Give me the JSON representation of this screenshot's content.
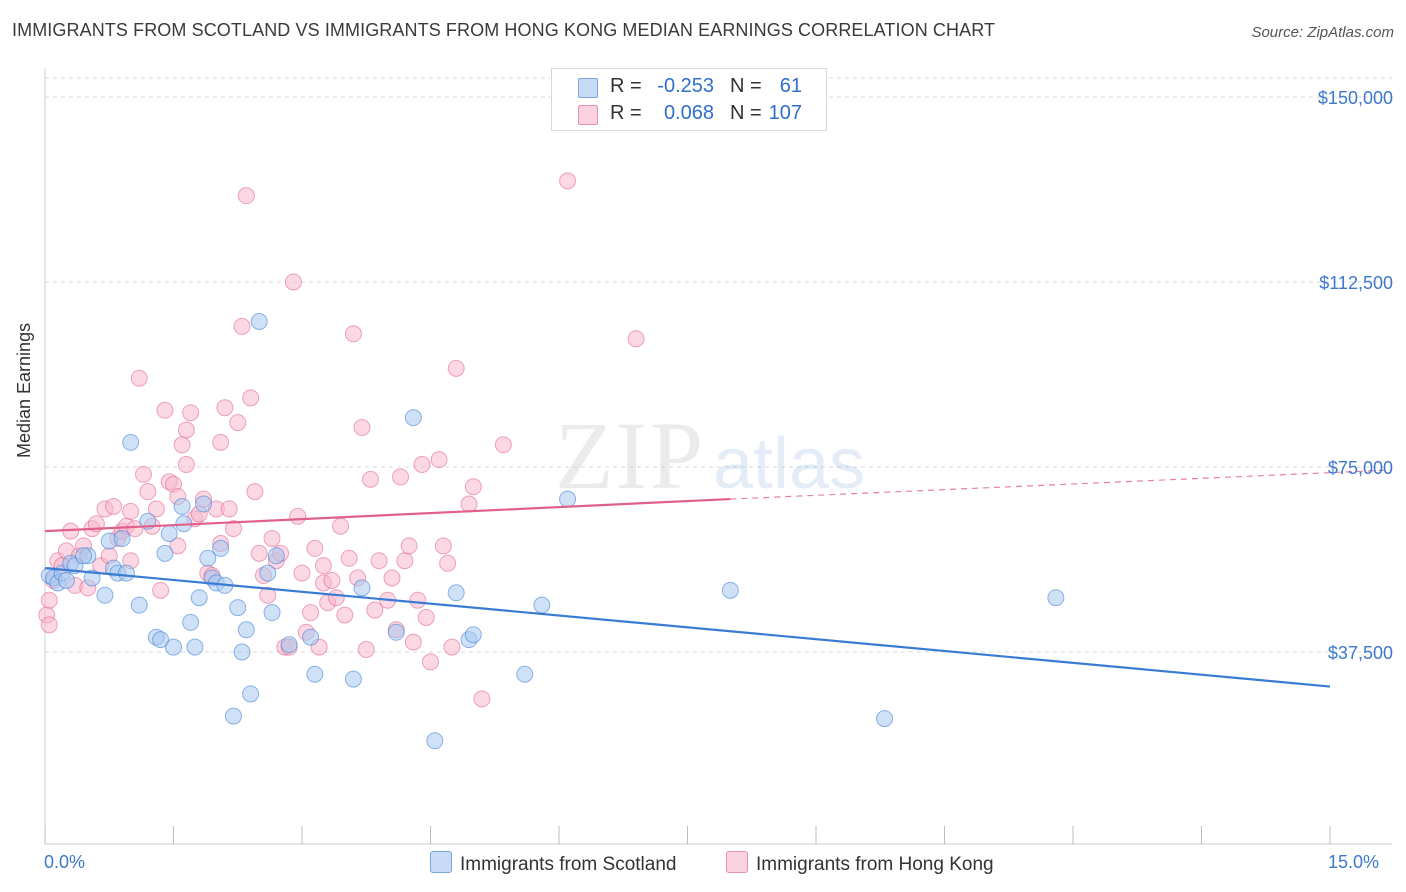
{
  "header": {
    "title": "IMMIGRANTS FROM SCOTLAND VS IMMIGRANTS FROM HONG KONG MEDIAN EARNINGS CORRELATION CHART",
    "source": "Source: ZipAtlas.com"
  },
  "watermark": {
    "zip": "ZIP",
    "atlas": "atlas"
  },
  "legend": {
    "rows": [
      {
        "r_label": "R =",
        "r_value": "-0.253",
        "n_label": "N =",
        "n_value": "61",
        "color": "#a8c8f0"
      },
      {
        "r_label": "R =",
        "r_value": "0.068",
        "n_label": "N =",
        "n_value": "107",
        "color": "#f7b8cc"
      }
    ]
  },
  "axes": {
    "ylabel": "Median Earnings",
    "x_min_label": "0.0%",
    "x_max_label": "15.0%",
    "y_ticks": [
      "$37,500",
      "$75,000",
      "$112,500",
      "$150,000"
    ]
  },
  "chart_data": {
    "type": "scatter",
    "title": "IMMIGRANTS FROM SCOTLAND VS IMMIGRANTS FROM HONG KONG MEDIAN EARNINGS CORRELATION CHART",
    "xlabel": "",
    "ylabel": "Median Earnings",
    "xlim": [
      0,
      15
    ],
    "ylim": [
      0,
      150000
    ],
    "y_ticks": [
      37500,
      75000,
      112500,
      150000
    ],
    "grid": true,
    "legend_position": "bottom",
    "series": [
      {
        "name": "Immigrants from Scotland",
        "color": "#3a7bd5",
        "fill": "#a8c8f0",
        "r": -0.253,
        "n": 61,
        "trend": {
          "x": [
            0,
            15
          ],
          "y": [
            54500,
            30500
          ]
        },
        "points": [
          [
            0.05,
            53000
          ],
          [
            0.1,
            52500
          ],
          [
            0.15,
            51500
          ],
          [
            0.2,
            53500
          ],
          [
            0.25,
            52000
          ],
          [
            0.3,
            55500
          ],
          [
            0.35,
            55000
          ],
          [
            0.5,
            57000
          ],
          [
            0.55,
            52500
          ],
          [
            0.7,
            49000
          ],
          [
            0.75,
            60000
          ],
          [
            0.8,
            54500
          ],
          [
            0.85,
            53500
          ],
          [
            0.9,
            60500
          ],
          [
            0.95,
            53500
          ],
          [
            1.0,
            80000
          ],
          [
            1.1,
            47000
          ],
          [
            1.2,
            64000
          ],
          [
            1.3,
            40500
          ],
          [
            1.35,
            40000
          ],
          [
            1.4,
            57500
          ],
          [
            1.45,
            61500
          ],
          [
            1.5,
            38500
          ],
          [
            1.6,
            67000
          ],
          [
            1.62,
            63500
          ],
          [
            1.7,
            43500
          ],
          [
            1.75,
            38500
          ],
          [
            1.8,
            48500
          ],
          [
            1.85,
            67500
          ],
          [
            1.9,
            56500
          ],
          [
            1.95,
            52500
          ],
          [
            2.0,
            51500
          ],
          [
            2.05,
            58500
          ],
          [
            2.1,
            51000
          ],
          [
            2.2,
            24500
          ],
          [
            2.25,
            46500
          ],
          [
            2.3,
            37500
          ],
          [
            2.35,
            42000
          ],
          [
            2.4,
            29000
          ],
          [
            2.5,
            104500
          ],
          [
            2.6,
            53500
          ],
          [
            2.65,
            45500
          ],
          [
            2.7,
            57000
          ],
          [
            2.85,
            39000
          ],
          [
            3.1,
            40500
          ],
          [
            3.15,
            33000
          ],
          [
            3.6,
            32000
          ],
          [
            3.7,
            50500
          ],
          [
            4.1,
            41500
          ],
          [
            4.3,
            85000
          ],
          [
            4.55,
            19500
          ],
          [
            4.8,
            49500
          ],
          [
            4.95,
            40000
          ],
          [
            5.0,
            41000
          ],
          [
            5.6,
            33000
          ],
          [
            5.8,
            47000
          ],
          [
            6.1,
            68500
          ],
          [
            8.0,
            50000
          ],
          [
            9.8,
            24000
          ],
          [
            11.8,
            48500
          ],
          [
            0.45,
            57000
          ]
        ]
      },
      {
        "name": "Immigrants from Hong Kong",
        "color": "#e0608a",
        "fill": "#f7b8cc",
        "r": 0.068,
        "n": 107,
        "trend": {
          "x": [
            0,
            8.0
          ],
          "y": [
            62000,
            68500
          ]
        },
        "trend_dashed": {
          "x": [
            8.0,
            15
          ],
          "y": [
            68500,
            74000
          ]
        },
        "points": [
          [
            0.02,
            45000
          ],
          [
            0.05,
            43000
          ],
          [
            0.05,
            48000
          ],
          [
            0.1,
            52000
          ],
          [
            0.15,
            56000
          ],
          [
            0.2,
            55000
          ],
          [
            0.25,
            58000
          ],
          [
            0.3,
            62000
          ],
          [
            0.35,
            51000
          ],
          [
            0.4,
            57000
          ],
          [
            0.45,
            59000
          ],
          [
            0.5,
            50500
          ],
          [
            0.55,
            62500
          ],
          [
            0.6,
            63500
          ],
          [
            0.65,
            55000
          ],
          [
            0.7,
            66500
          ],
          [
            0.75,
            57000
          ],
          [
            0.8,
            67000
          ],
          [
            0.85,
            60500
          ],
          [
            0.9,
            62000
          ],
          [
            0.95,
            63000
          ],
          [
            1.0,
            56000
          ],
          [
            1.05,
            62500
          ],
          [
            1.1,
            93000
          ],
          [
            1.15,
            73500
          ],
          [
            1.2,
            70000
          ],
          [
            1.25,
            63000
          ],
          [
            1.3,
            66500
          ],
          [
            1.35,
            50000
          ],
          [
            1.4,
            86500
          ],
          [
            1.45,
            72000
          ],
          [
            1.5,
            71500
          ],
          [
            1.55,
            69000
          ],
          [
            1.6,
            79500
          ],
          [
            1.65,
            75500
          ],
          [
            1.7,
            86000
          ],
          [
            1.75,
            64500
          ],
          [
            1.8,
            65500
          ],
          [
            1.85,
            68500
          ],
          [
            1.9,
            53500
          ],
          [
            1.95,
            53000
          ],
          [
            2.0,
            66500
          ],
          [
            2.05,
            80000
          ],
          [
            2.1,
            87000
          ],
          [
            2.15,
            66500
          ],
          [
            2.2,
            62500
          ],
          [
            2.25,
            84000
          ],
          [
            2.3,
            103500
          ],
          [
            2.35,
            130000
          ],
          [
            2.4,
            89000
          ],
          [
            2.45,
            70000
          ],
          [
            2.5,
            57500
          ],
          [
            2.55,
            53000
          ],
          [
            2.6,
            49000
          ],
          [
            2.65,
            60500
          ],
          [
            2.7,
            56000
          ],
          [
            2.75,
            57500
          ],
          [
            2.8,
            38500
          ],
          [
            2.85,
            38500
          ],
          [
            2.9,
            112500
          ],
          [
            2.95,
            65000
          ],
          [
            3.0,
            53500
          ],
          [
            3.05,
            41500
          ],
          [
            3.1,
            45500
          ],
          [
            3.15,
            58500
          ],
          [
            3.2,
            38500
          ],
          [
            3.25,
            51500
          ],
          [
            3.3,
            47500
          ],
          [
            3.35,
            52000
          ],
          [
            3.4,
            48500
          ],
          [
            3.45,
            63000
          ],
          [
            3.5,
            45000
          ],
          [
            3.55,
            56500
          ],
          [
            3.6,
            102000
          ],
          [
            3.65,
            52500
          ],
          [
            3.7,
            83000
          ],
          [
            3.75,
            38000
          ],
          [
            3.8,
            72500
          ],
          [
            3.85,
            46000
          ],
          [
            3.9,
            56000
          ],
          [
            4.0,
            48000
          ],
          [
            4.05,
            52500
          ],
          [
            4.1,
            42000
          ],
          [
            4.15,
            73000
          ],
          [
            4.2,
            56000
          ],
          [
            4.25,
            59000
          ],
          [
            4.3,
            39500
          ],
          [
            4.35,
            48000
          ],
          [
            4.4,
            75500
          ],
          [
            4.45,
            44500
          ],
          [
            4.5,
            35500
          ],
          [
            4.6,
            76500
          ],
          [
            4.65,
            59000
          ],
          [
            4.7,
            55500
          ],
          [
            4.75,
            38500
          ],
          [
            4.8,
            95000
          ],
          [
            4.95,
            67500
          ],
          [
            5.0,
            71000
          ],
          [
            5.1,
            28000
          ],
          [
            5.35,
            79500
          ],
          [
            6.1,
            133000
          ],
          [
            6.9,
            101000
          ],
          [
            1.55,
            59000
          ],
          [
            1.0,
            66000
          ],
          [
            1.65,
            82500
          ],
          [
            2.05,
            59500
          ],
          [
            3.25,
            55000
          ]
        ]
      }
    ]
  },
  "bottom_legend": [
    {
      "label": "Immigrants from Scotland",
      "color": "#a8c8f0",
      "border": "#7aa6e0"
    },
    {
      "label": "Immigrants from Hong Kong",
      "color": "#f7b8cc",
      "border": "#ec8fae"
    }
  ]
}
